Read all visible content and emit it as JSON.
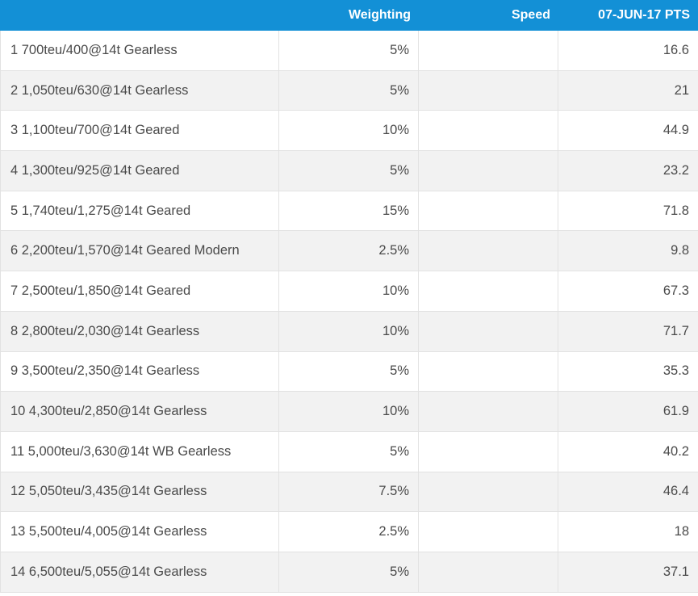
{
  "table": {
    "headers": {
      "name": "",
      "weighting": "Weighting",
      "speed": "Speed",
      "pts": "07-JUN-17 PTS"
    },
    "rows": [
      {
        "name": "1 700teu/400@14t Gearless",
        "weighting": "5%",
        "speed": "",
        "pts": "16.6"
      },
      {
        "name": "2 1,050teu/630@14t Gearless",
        "weighting": "5%",
        "speed": "",
        "pts": "21"
      },
      {
        "name": "3 1,100teu/700@14t Geared",
        "weighting": "10%",
        "speed": "",
        "pts": "44.9"
      },
      {
        "name": "4 1,300teu/925@14t Geared",
        "weighting": "5%",
        "speed": "",
        "pts": "23.2"
      },
      {
        "name": "5 1,740teu/1,275@14t Geared",
        "weighting": "15%",
        "speed": "",
        "pts": "71.8"
      },
      {
        "name": "6 2,200teu/1,570@14t Geared Modern",
        "weighting": "2.5%",
        "speed": "",
        "pts": "9.8"
      },
      {
        "name": "7 2,500teu/1,850@14t Geared",
        "weighting": "10%",
        "speed": "",
        "pts": "67.3"
      },
      {
        "name": "8 2,800teu/2,030@14t Gearless",
        "weighting": "10%",
        "speed": "",
        "pts": "71.7"
      },
      {
        "name": "9 3,500teu/2,350@14t Gearless",
        "weighting": "5%",
        "speed": "",
        "pts": "35.3"
      },
      {
        "name": "10 4,300teu/2,850@14t Gearless",
        "weighting": "10%",
        "speed": "",
        "pts": "61.9"
      },
      {
        "name": "11 5,000teu/3,630@14t WB Gearless",
        "weighting": "5%",
        "speed": "",
        "pts": "40.2"
      },
      {
        "name": "12 5,050teu/3,435@14t Gearless",
        "weighting": "7.5%",
        "speed": "",
        "pts": "46.4"
      },
      {
        "name": "13 5,500teu/4,005@14t Gearless",
        "weighting": "2.5%",
        "speed": "",
        "pts": "18"
      },
      {
        "name": "14 6,500teu/5,055@14t Gearless",
        "weighting": "5%",
        "speed": "",
        "pts": "37.1"
      }
    ]
  },
  "colors": {
    "header_bg": "#1390d6",
    "header_text": "#ffffff",
    "row_alt_bg": "#f2f2f2",
    "text": "#4a4a4a",
    "border": "#e2e2e2"
  }
}
